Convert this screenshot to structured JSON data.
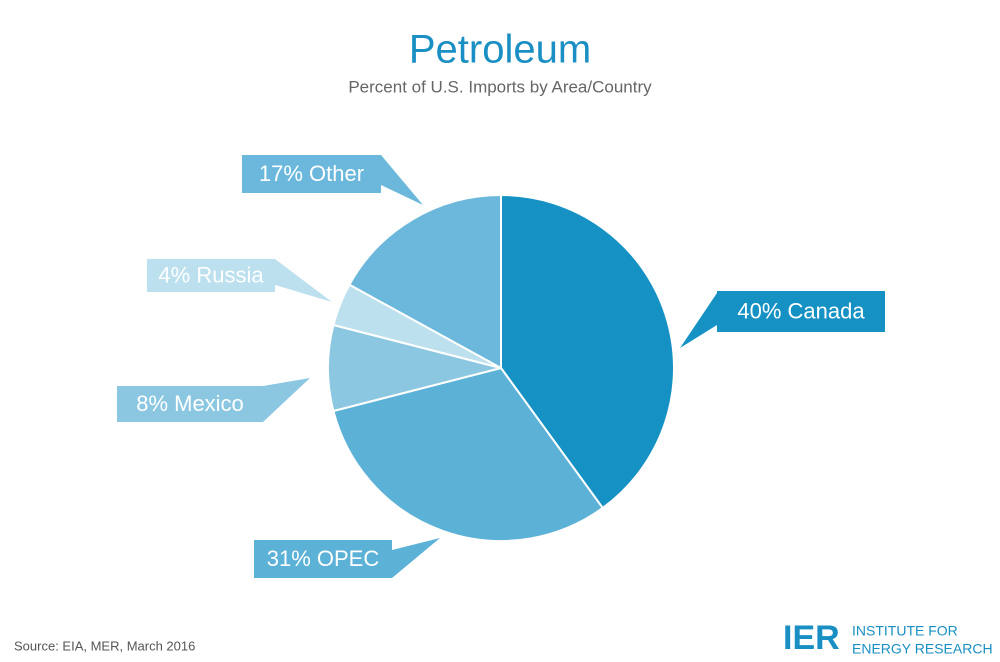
{
  "chart_data": {
    "type": "pie",
    "title": "Petroleum",
    "subtitle": "Percent of U.S. Imports by Area/Country",
    "values": [
      40,
      31,
      8,
      4,
      17
    ],
    "value_labels": [
      "40% Canada",
      "31% OPEC",
      "8% Mexico",
      "4% Russia",
      "17% Other"
    ],
    "colors": [
      "#1591c4",
      "#5cb1d7",
      "#8cc7e2",
      "#bde0ef",
      "#6bb8dc"
    ],
    "source": "Source: EIA, MER, March 2016"
  },
  "logo": {
    "mark": "IER",
    "line1": "INSTITUTE FOR",
    "line2": "ENERGY RESEARCH"
  }
}
